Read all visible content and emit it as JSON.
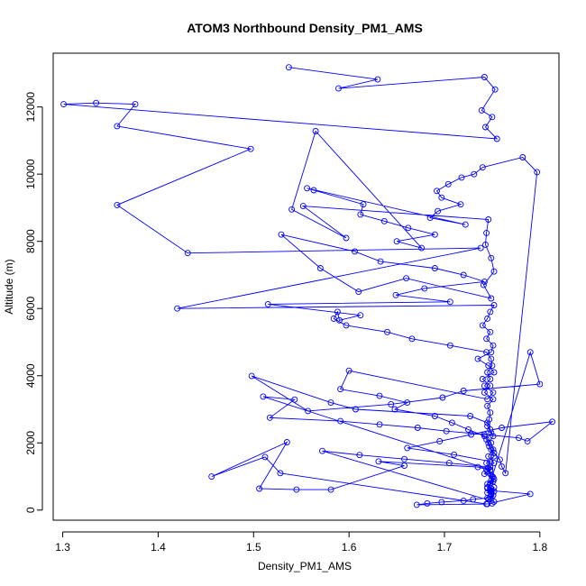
{
  "chart_data": {
    "type": "line",
    "title": "ATOM3 Northbound Density_PM1_AMS",
    "xlabel": "Density_PM1_AMS",
    "ylabel": "Altitude (m)",
    "xlim": [
      1.29,
      1.82
    ],
    "ylim": [
      -300,
      13600
    ],
    "xticks": [
      1.3,
      1.4,
      1.5,
      1.6,
      1.7,
      1.8
    ],
    "xtick_labels": [
      "1.3",
      "1.4",
      "1.5",
      "1.6",
      "1.7",
      "1.8"
    ],
    "yticks": [
      0,
      2000,
      4000,
      6000,
      8000,
      10000,
      12000
    ],
    "ytick_labels": [
      "0",
      "2000",
      "4000",
      "6000",
      "8000",
      "10000",
      "12000"
    ],
    "grid": false,
    "legend": "none",
    "marker": "open-circle",
    "color": "#0000ff",
    "series": [
      {
        "x": [
          1.537,
          1.63,
          1.589,
          1.742,
          1.753,
          1.739,
          1.75,
          1.743,
          1.755,
          1.301,
          1.335,
          1.376,
          1.357,
          1.497,
          1.357,
          1.431,
          1.738,
          1.42,
          1.752,
          1.748,
          1.745,
          1.74,
          1.748,
          1.744,
          1.751,
          1.749,
          1.735,
          1.746,
          1.752,
          1.74,
          1.748,
          1.742,
          1.751,
          1.745,
          1.748,
          1.747,
          1.745,
          1.749,
          1.744,
          1.747,
          1.752,
          1.758,
          1.76,
          1.764,
          1.797,
          1.782,
          1.74,
          1.731,
          1.718,
          1.704,
          1.692,
          1.697,
          1.717,
          1.693,
          1.685,
          1.722,
          1.556,
          1.563,
          1.615,
          1.612,
          1.637,
          1.662,
          1.69,
          1.65,
          1.676,
          1.565,
          1.54,
          1.597,
          1.552,
          1.746,
          1.744,
          1.743,
          1.749,
          1.752,
          1.741,
          1.749,
          1.66,
          1.61,
          1.57,
          1.529,
          1.606,
          1.633,
          1.69,
          1.72,
          1.742,
          1.679,
          1.649,
          1.706,
          1.515,
          1.612,
          1.59,
          1.588,
          1.584,
          1.597,
          1.64,
          1.666,
          1.706,
          1.744,
          1.749,
          1.75,
          1.745,
          1.748,
          1.742,
          1.751,
          1.745,
          1.6,
          1.591,
          1.632,
          1.661,
          1.648,
          1.69,
          1.708,
          1.725,
          1.742,
          1.749,
          1.751,
          1.746,
          1.752,
          1.744,
          1.75,
          1.748,
          1.79,
          1.8,
          1.72,
          1.698,
          1.644,
          1.557,
          1.498,
          1.581,
          1.607,
          1.727,
          1.745,
          1.748,
          1.751,
          1.746,
          1.749,
          1.752,
          1.744,
          1.748,
          1.51,
          1.543,
          1.517,
          1.591,
          1.632,
          1.672,
          1.702,
          1.742,
          1.778,
          1.787,
          1.813,
          1.76,
          1.728,
          1.695,
          1.661,
          1.71,
          1.748,
          1.746,
          1.749,
          1.751,
          1.745,
          1.749,
          1.752,
          1.572,
          1.611,
          1.658,
          1.705,
          1.748,
          1.745,
          1.749,
          1.752,
          1.748,
          1.745,
          1.749,
          1.751,
          1.746,
          1.75,
          1.744,
          1.528,
          1.512,
          1.456,
          1.535,
          1.506,
          1.545,
          1.581,
          1.658,
          1.631,
          1.735,
          1.748,
          1.742,
          1.751,
          1.749,
          1.745,
          1.752,
          1.748,
          1.79,
          1.745,
          1.671,
          1.682,
          1.697,
          1.72,
          1.73,
          1.745,
          1.748,
          1.751,
          1.749,
          1.745,
          1.752,
          1.748,
          1.749
        ],
        "y": [
          13180,
          12820,
          12550,
          12890,
          12520,
          11900,
          11700,
          11400,
          11050,
          12080,
          12120,
          12080,
          11430,
          10750,
          9080,
          7650,
          7800,
          6000,
          6100,
          5900,
          5700,
          5500,
          5300,
          5100,
          4900,
          4700,
          4500,
          4300,
          4100,
          3900,
          3700,
          3500,
          3300,
          3100,
          2900,
          2700,
          2500,
          2300,
          2100,
          1900,
          1700,
          1500,
          1300,
          1100,
          10060,
          10500,
          10200,
          10000,
          9900,
          9700,
          9500,
          9300,
          9100,
          8900,
          8700,
          8500,
          9580,
          9520,
          9100,
          8800,
          8600,
          8400,
          8200,
          8000,
          7800,
          11280,
          8950,
          8100,
          9050,
          8650,
          8250,
          7900,
          7500,
          7100,
          6700,
          6300,
          6900,
          6500,
          7200,
          8200,
          7700,
          7400,
          7200,
          7000,
          6800,
          6600,
          6400,
          6200,
          6130,
          5800,
          5650,
          5900,
          5700,
          5500,
          5300,
          5100,
          4900,
          4700,
          4500,
          4300,
          4100,
          3900,
          3700,
          3500,
          3300,
          4150,
          3600,
          3400,
          3200,
          3000,
          2800,
          2600,
          2400,
          2200,
          2000,
          1800,
          1600,
          1400,
          1200,
          1000,
          800,
          4700,
          3750,
          3550,
          3350,
          3150,
          2950,
          3990,
          3200,
          3000,
          2800,
          2600,
          2400,
          2200,
          2000,
          1800,
          1600,
          1400,
          1200,
          3380,
          3290,
          2750,
          2650,
          2550,
          2450,
          2350,
          2250,
          2150,
          2050,
          2630,
          2450,
          2250,
          2050,
          1850,
          1650,
          1450,
          1250,
          1050,
          850,
          650,
          450,
          250,
          1760,
          1640,
          1520,
          1400,
          1280,
          1160,
          1040,
          920,
          800,
          680,
          560,
          440,
          320,
          200,
          180,
          1100,
          1580,
          1000,
          2020,
          640,
          610,
          610,
          1320,
          1450,
          1280,
          1180,
          1080,
          980,
          880,
          780,
          680,
          580,
          480,
          180,
          160,
          200,
          240,
          280,
          320,
          360,
          400,
          440,
          480,
          520,
          560,
          600,
          640
        ]
      }
    ]
  }
}
